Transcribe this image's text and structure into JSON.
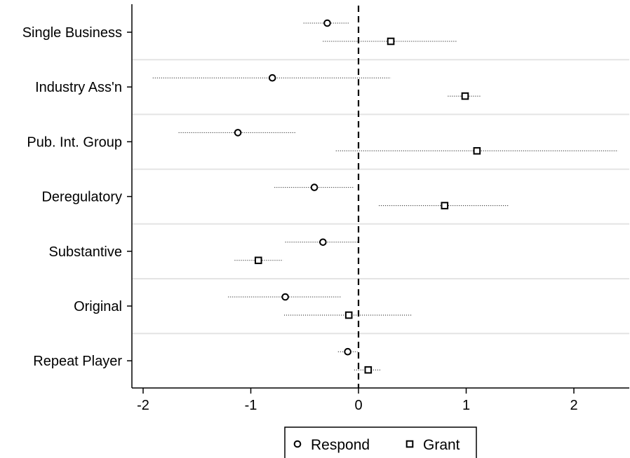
{
  "chart_data": {
    "type": "scatter",
    "subtype": "coefficient-plot",
    "title": "",
    "xlabel": "",
    "ylabel": "",
    "xlim": [
      -2.1,
      2.5
    ],
    "x_ticks": [
      -2,
      -1,
      0,
      1,
      2
    ],
    "x_tick_labels": [
      "-2",
      "-1",
      "0",
      "1",
      "2"
    ],
    "reference_line_x": 0,
    "categories": [
      "Single Business",
      "Industry Ass'n",
      "Pub. Int. Group",
      "Deregulatory",
      "Substantive",
      "Original",
      "Repeat Player"
    ],
    "series": [
      {
        "name": "Respond",
        "marker": "circle",
        "points": [
          {
            "category": "Single Business",
            "x": -0.29,
            "lo": -0.51,
            "hi": -0.09
          },
          {
            "category": "Industry Ass'n",
            "x": -0.8,
            "lo": -1.91,
            "hi": 0.3
          },
          {
            "category": "Pub. Int. Group",
            "x": -1.12,
            "lo": -1.67,
            "hi": -0.58
          },
          {
            "category": "Deregulatory",
            "x": -0.41,
            "lo": -0.78,
            "hi": -0.05
          },
          {
            "category": "Substantive",
            "x": -0.33,
            "lo": -0.68,
            "hi": 0.0
          },
          {
            "category": "Original",
            "x": -0.68,
            "lo": -1.21,
            "hi": -0.16
          },
          {
            "category": "Repeat Player",
            "x": -0.1,
            "lo": -0.19,
            "hi": -0.01
          }
        ]
      },
      {
        "name": "Grant",
        "marker": "square",
        "points": [
          {
            "category": "Single Business",
            "x": 0.3,
            "lo": -0.33,
            "hi": 0.91
          },
          {
            "category": "Industry Ass'n",
            "x": 0.99,
            "lo": 0.83,
            "hi": 1.13
          },
          {
            "category": "Pub. Int. Group",
            "x": 1.1,
            "lo": -0.21,
            "hi": 2.41
          },
          {
            "category": "Deregulatory",
            "x": 0.8,
            "lo": 0.19,
            "hi": 1.39
          },
          {
            "category": "Substantive",
            "x": -0.93,
            "lo": -1.15,
            "hi": -0.7
          },
          {
            "category": "Original",
            "x": -0.09,
            "lo": -0.69,
            "hi": 0.5
          },
          {
            "category": "Repeat Player",
            "x": 0.09,
            "lo": -0.04,
            "hi": 0.21
          }
        ]
      }
    ],
    "legend": {
      "placement": "bottom",
      "entries": [
        {
          "label": "Respond",
          "marker": "circle"
        },
        {
          "label": "Grant",
          "marker": "square"
        }
      ]
    },
    "grid": "horizontal separators between categories"
  }
}
